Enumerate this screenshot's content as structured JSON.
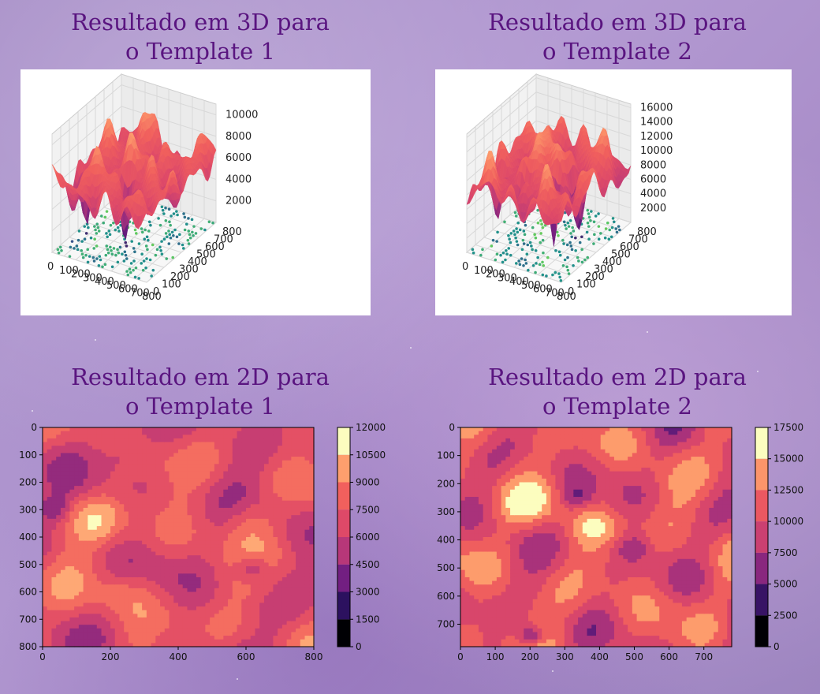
{
  "titles": {
    "tl_line1": "Resultado em 3D para",
    "tl_line2": "o Template 1",
    "tr_line1": "Resultado em 3D para",
    "tr_line2": "o Template 2",
    "bl_line1": "Resultado em 2D para",
    "bl_line2": "o Template 1",
    "br_line1": "Resultado em 2D para",
    "br_line2": "o Template 2"
  },
  "colors": {
    "title": "#5a1580",
    "magma": [
      "#000004",
      "#2c115f",
      "#721f81",
      "#b73779",
      "#de4968",
      "#f1605d",
      "#fe9f6d",
      "#fcfdbf"
    ]
  },
  "chart_data": [
    {
      "type": "surface3d",
      "title": "Resultado em 3D para o Template 1",
      "x_ticks": [
        "0",
        "100",
        "200",
        "300",
        "400",
        "500",
        "600",
        "700",
        "800"
      ],
      "y_ticks": [
        "0",
        "100",
        "200",
        "300",
        "400",
        "500",
        "600",
        "700",
        "800"
      ],
      "z_ticks": [
        "2000",
        "4000",
        "6000",
        "8000",
        "10000"
      ],
      "xlim": [
        0,
        800
      ],
      "ylim": [
        0,
        800
      ],
      "zlim": [
        0,
        11000
      ],
      "colormap": "magma",
      "contour_floor": true
    },
    {
      "type": "surface3d",
      "title": "Resultado em 3D para o Template 2",
      "x_ticks": [
        "0",
        "100",
        "200",
        "300",
        "400",
        "500",
        "600",
        "700",
        "800"
      ],
      "y_ticks": [
        "0",
        "100",
        "200",
        "300",
        "400",
        "500",
        "600",
        "700",
        "800"
      ],
      "z_ticks": [
        "2000",
        "4000",
        "6000",
        "8000",
        "10000",
        "12000",
        "14000",
        "16000"
      ],
      "xlim": [
        0,
        800
      ],
      "ylim": [
        0,
        800
      ],
      "zlim": [
        0,
        16500
      ],
      "colormap": "magma",
      "contour_floor": true
    },
    {
      "type": "heatmap",
      "title": "Resultado em 2D para o Template 1",
      "x_ticks": [
        "0",
        "200",
        "400",
        "600",
        "800"
      ],
      "y_ticks": [
        "0",
        "100",
        "200",
        "300",
        "400",
        "500",
        "600",
        "700",
        "800"
      ],
      "xlim": [
        0,
        800
      ],
      "ylim": [
        800,
        0
      ],
      "colorbar_ticks": [
        "0",
        "1500",
        "3000",
        "4500",
        "6000",
        "7500",
        "9000",
        "10500",
        "12000"
      ],
      "colorbar_range": [
        0,
        12000
      ],
      "colormap": "magma",
      "levels": 8
    },
    {
      "type": "heatmap",
      "title": "Resultado em 2D para o Template 2",
      "x_ticks": [
        "0",
        "100",
        "200",
        "300",
        "400",
        "500",
        "600",
        "700"
      ],
      "y_ticks": [
        "0",
        "100",
        "200",
        "300",
        "400",
        "500",
        "600",
        "700"
      ],
      "xlim": [
        0,
        780
      ],
      "ylim": [
        780,
        0
      ],
      "colorbar_ticks": [
        "0",
        "2500",
        "5000",
        "7500",
        "10000",
        "12500",
        "15000",
        "17500"
      ],
      "colorbar_range": [
        0,
        17500
      ],
      "colormap": "magma",
      "levels": 7
    }
  ]
}
